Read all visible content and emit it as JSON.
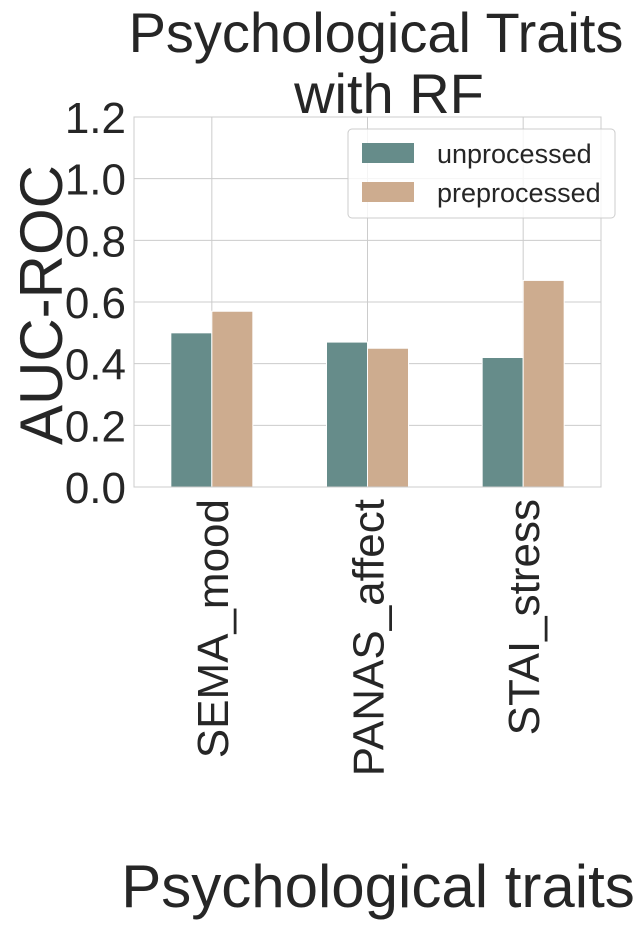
{
  "chart_data": {
    "type": "bar",
    "title_lines": [
      "Psychological Traits",
      "with RF"
    ],
    "xlabel": "Psychological traits",
    "ylabel": "AUC-ROC",
    "categories": [
      "SEMA_mood",
      "PANAS_affect",
      "STAI_stress"
    ],
    "series": [
      {
        "name": "unprocessed",
        "color": "#668c8a",
        "values": [
          0.5,
          0.47,
          0.42
        ]
      },
      {
        "name": "preprocessed",
        "color": "#cdac8f",
        "values": [
          0.57,
          0.45,
          0.67
        ]
      }
    ],
    "ylim": [
      0,
      1.2
    ],
    "yticks": [
      "0.0",
      "0.2",
      "0.4",
      "0.6",
      "0.8",
      "1.0",
      "1.2"
    ],
    "grid": true,
    "legend_position": "top-right"
  }
}
